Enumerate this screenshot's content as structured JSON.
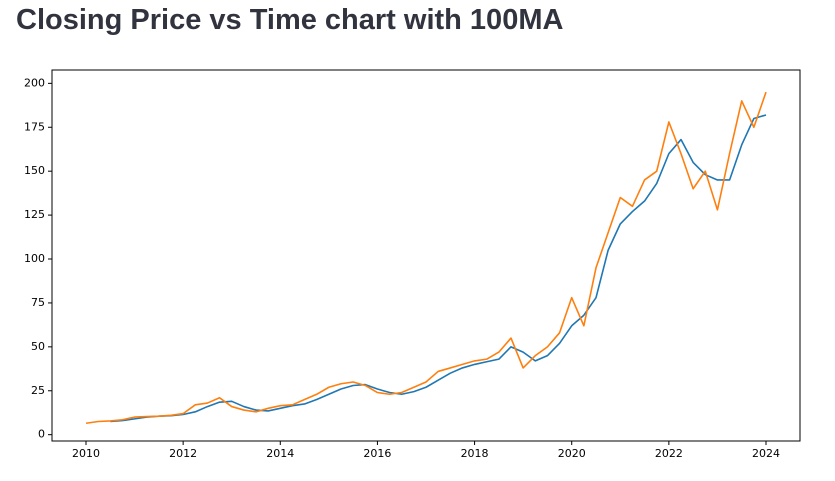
{
  "chart_data": {
    "type": "line",
    "title": "Closing Price vs Time chart with 100MA",
    "x": [
      2010.0,
      2010.25,
      2010.5,
      2010.75,
      2011.0,
      2011.25,
      2011.5,
      2011.75,
      2012.0,
      2012.25,
      2012.5,
      2012.75,
      2013.0,
      2013.25,
      2013.5,
      2013.75,
      2014.0,
      2014.25,
      2014.5,
      2014.75,
      2015.0,
      2015.25,
      2015.5,
      2015.75,
      2016.0,
      2016.25,
      2016.5,
      2016.75,
      2017.0,
      2017.25,
      2017.5,
      2017.75,
      2018.0,
      2018.25,
      2018.5,
      2018.75,
      2019.0,
      2019.25,
      2019.5,
      2019.75,
      2020.0,
      2020.25,
      2020.5,
      2020.75,
      2021.0,
      2021.25,
      2021.5,
      2021.75,
      2022.0,
      2022.25,
      2022.5,
      2022.75,
      2023.0,
      2023.25,
      2023.5,
      2023.75,
      2024.0
    ],
    "series": [
      {
        "color": "#1f77b4",
        "values": [
          null,
          null,
          7.5,
          8,
          9,
          10,
          10.5,
          10.8,
          11.5,
          13,
          16,
          18.5,
          19,
          16,
          14,
          13.5,
          15,
          16.5,
          17.5,
          20,
          23,
          26,
          28,
          28.5,
          26,
          24,
          23,
          24.5,
          27,
          31,
          35,
          38,
          40,
          41.5,
          43,
          50,
          47,
          42,
          45,
          52,
          62,
          68,
          78,
          105,
          120,
          127,
          133,
          143,
          160,
          168,
          155,
          148,
          145,
          145,
          165,
          180,
          182
        ]
      },
      {
        "color": "#ff7f0e",
        "values": [
          6.5,
          7.5,
          7.8,
          8.5,
          10,
          10.3,
          10.5,
          11,
          12,
          17,
          18,
          21,
          16,
          14,
          13,
          15,
          16.5,
          17,
          20,
          23,
          27,
          29,
          30,
          28,
          24,
          23,
          24,
          27,
          30,
          36,
          38,
          40,
          42,
          43,
          47,
          55,
          38,
          45,
          50,
          58,
          78,
          62,
          95,
          115,
          135,
          130,
          145,
          150,
          178,
          160,
          140,
          150,
          128,
          160,
          190,
          175,
          195
        ]
      }
    ],
    "xlim": [
      2009.3,
      2024.7
    ],
    "ylim": [
      -3.6,
      207.6
    ],
    "xticks": [
      2010,
      2012,
      2014,
      2016,
      2018,
      2020,
      2022,
      2024
    ],
    "yticks": [
      0,
      25,
      50,
      75,
      100,
      125,
      150,
      175,
      200
    ]
  }
}
